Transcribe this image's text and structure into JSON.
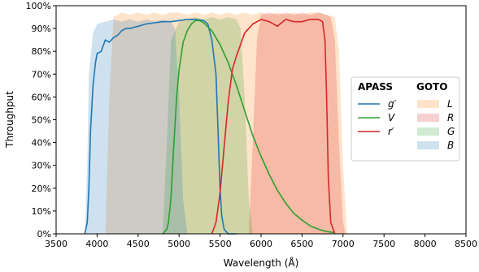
{
  "chart_data": {
    "type": "area",
    "xlabel": "Wavelength (Å)",
    "ylabel": "Throughput",
    "xlim": [
      3500,
      8500
    ],
    "ylim": [
      0,
      100
    ],
    "x_ticks": [
      3500,
      4000,
      4500,
      5000,
      5500,
      6000,
      6500,
      7000,
      7500,
      8000,
      8500
    ],
    "y_ticks": [
      0,
      10,
      20,
      30,
      40,
      50,
      60,
      70,
      80,
      90,
      100
    ],
    "x_tick_labels": [
      "3500",
      "4000",
      "4500",
      "5000",
      "5500",
      "6000",
      "6500",
      "7000",
      "7500",
      "8000",
      "8500"
    ],
    "y_tick_labels": [
      "0%",
      "10%",
      "20%",
      "30%",
      "40%",
      "50%",
      "60%",
      "70%",
      "80%",
      "90%",
      "100%"
    ],
    "legend_position": "right",
    "legend_groups": [
      {
        "title": "APASS",
        "series": [
          {
            "name": "g′",
            "kind": "line",
            "color": "#1f77b4",
            "x": [
              3850,
              3880,
              3900,
              3920,
              3950,
              3980,
              4000,
              4050,
              4100,
              4150,
              4200,
              4250,
              4300,
              4350,
              4400,
              4500,
              4600,
              4700,
              4800,
              4900,
              5000,
              5100,
              5200,
              5300,
              5350,
              5400,
              5450,
              5480,
              5500,
              5520,
              5550,
              5600,
              5700
            ],
            "y": [
              0,
              5,
              20,
              45,
              65,
              75,
              79,
              80,
              85,
              84,
              86,
              87,
              89,
              90,
              90,
              91,
              92,
              92.5,
              93,
              93,
              93.5,
              94,
              94,
              93.5,
              92,
              85,
              70,
              40,
              20,
              8,
              2,
              0,
              0
            ]
          },
          {
            "name": "V",
            "kind": "line",
            "color": "#2ca02c",
            "x": [
              4800,
              4850,
              4870,
              4900,
              4930,
              4970,
              5000,
              5050,
              5100,
              5150,
              5200,
              5250,
              5300,
              5400,
              5500,
              5600,
              5700,
              5800,
              5900,
              6000,
              6100,
              6200,
              6300,
              6400,
              6500,
              6600,
              6700,
              6800,
              6900
            ],
            "y": [
              0,
              2,
              5,
              15,
              35,
              60,
              72,
              84,
              89,
              92,
              93.5,
              93.5,
              92.5,
              89,
              83,
              75,
              65,
              54,
              43,
              34,
              26,
              19,
              13.5,
              9,
              6,
              3.5,
              2,
              1,
              0.5
            ]
          },
          {
            "name": "r′",
            "kind": "line",
            "color": "#d62728",
            "x": [
              5400,
              5450,
              5500,
              5550,
              5600,
              5650,
              5700,
              5750,
              5800,
              5850,
              5900,
              6000,
              6100,
              6200,
              6300,
              6400,
              6500,
              6600,
              6700,
              6750,
              6780,
              6800,
              6820,
              6850,
              6900
            ],
            "y": [
              0,
              5,
              18,
              38,
              58,
              72,
              78,
              83,
              88,
              90,
              92,
              94,
              93,
              91,
              94,
              93,
              93,
              94,
              94,
              93,
              85,
              60,
              25,
              5,
              0
            ]
          }
        ]
      },
      {
        "title": "GOTO",
        "series": [
          {
            "name": "L",
            "kind": "area",
            "color": "#ff7f0e",
            "x": [
              4100,
              4150,
              4200,
              4300,
              4400,
              4500,
              4600,
              4700,
              4800,
              4900,
              5000,
              5100,
              5200,
              5300,
              5400,
              5500,
              5600,
              5700,
              5800,
              5900,
              6000,
              6100,
              6200,
              6300,
              6400,
              6500,
              6600,
              6700,
              6800,
              6900,
              6950,
              7000,
              7050
            ],
            "y": [
              0,
              60,
              95,
              97,
              96,
              97,
              96,
              97,
              96,
              97,
              97,
              96,
              97,
              96,
              97,
              96,
              97,
              96,
              97,
              96,
              97,
              96,
              97,
              96,
              97,
              96,
              97,
              97,
              96,
              95,
              80,
              30,
              0
            ]
          },
          {
            "name": "R",
            "kind": "area",
            "color": "#d62728",
            "x": [
              5850,
              5900,
              5950,
              6000,
              6100,
              6200,
              6300,
              6400,
              6500,
              6600,
              6700,
              6800,
              6850,
              6900,
              6950,
              7000,
              7030
            ],
            "y": [
              0,
              40,
              85,
              96,
              97,
              96,
              97,
              96,
              97,
              96,
              97,
              96,
              95,
              85,
              40,
              5,
              0
            ]
          },
          {
            "name": "G",
            "kind": "area",
            "color": "#2ca02c",
            "x": [
              4800,
              4850,
              4900,
              5000,
              5100,
              5200,
              5300,
              5400,
              5500,
              5600,
              5700,
              5750,
              5800,
              5850,
              5900
            ],
            "y": [
              0,
              40,
              85,
              93,
              94,
              95,
              94,
              95,
              94,
              95,
              94,
              90,
              60,
              15,
              0
            ]
          },
          {
            "name": "B",
            "kind": "area",
            "color": "#1f77b4",
            "x": [
              3850,
              3880,
              3900,
              3950,
              4000,
              4100,
              4200,
              4300,
              4400,
              4500,
              4600,
              4700,
              4800,
              4900,
              4950,
              5000,
              5050,
              5100
            ],
            "y": [
              0,
              30,
              70,
              88,
              92,
              93,
              94,
              93,
              94,
              93,
              94,
              93,
              94,
              93,
              90,
              60,
              15,
              0
            ]
          }
        ]
      }
    ]
  }
}
